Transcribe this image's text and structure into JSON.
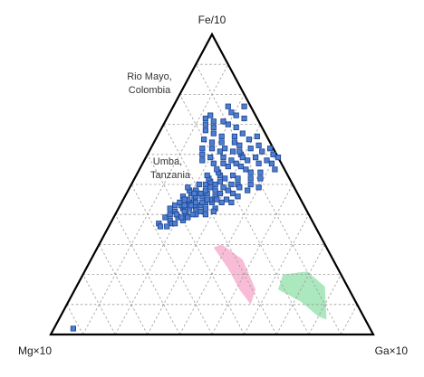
{
  "chart_data": {
    "type": "scatter",
    "subtype": "ternary",
    "grid": true,
    "grid_divisions": 10,
    "vertices": {
      "top": "Fe/10",
      "left": "Mg×10",
      "right": "Ga×10"
    },
    "regions": [
      {
        "label_lines": [
          "Rio Mayo,",
          "Colombia"
        ],
        "color": "#8fe0a8",
        "points": [
          [
            0.8,
            0.06
          ],
          [
            0.83,
            0.05
          ],
          [
            0.77,
            0.16
          ],
          [
            0.69,
            0.21
          ],
          [
            0.62,
            0.2
          ],
          [
            0.63,
            0.15
          ],
          [
            0.72,
            0.11
          ]
        ]
      },
      {
        "label_lines": [
          "Umba,",
          "Tanzania"
        ],
        "color": "#f7a6c8",
        "points": [
          [
            0.57,
            0.1
          ],
          [
            0.56,
            0.15
          ],
          [
            0.47,
            0.25
          ],
          [
            0.38,
            0.3
          ],
          [
            0.36,
            0.29
          ],
          [
            0.44,
            0.22
          ],
          [
            0.51,
            0.15
          ]
        ]
      }
    ],
    "marker": {
      "shape": "square",
      "fill": "#4a7fd4",
      "stroke": "#1c3f8a"
    },
    "points": [
      [
        0.06,
        0.02
      ],
      [
        0.15,
        0.37
      ],
      [
        0.16,
        0.36
      ],
      [
        0.18,
        0.38
      ],
      [
        0.19,
        0.37
      ],
      [
        0.18,
        0.36
      ],
      [
        0.2,
        0.39
      ],
      [
        0.22,
        0.38
      ],
      [
        0.2,
        0.37
      ],
      [
        0.16,
        0.39
      ],
      [
        0.17,
        0.4
      ],
      [
        0.18,
        0.41
      ],
      [
        0.2,
        0.42
      ],
      [
        0.22,
        0.4
      ],
      [
        0.21,
        0.41
      ],
      [
        0.24,
        0.42
      ],
      [
        0.23,
        0.39
      ],
      [
        0.19,
        0.43
      ],
      [
        0.21,
        0.44
      ],
      [
        0.19,
        0.4
      ],
      [
        0.23,
        0.43
      ],
      [
        0.25,
        0.4
      ],
      [
        0.21,
        0.39
      ],
      [
        0.18,
        0.44
      ],
      [
        0.25,
        0.43
      ],
      [
        0.27,
        0.42
      ],
      [
        0.22,
        0.45
      ],
      [
        0.26,
        0.44
      ],
      [
        0.2,
        0.45
      ],
      [
        0.17,
        0.43
      ],
      [
        0.22,
        0.46
      ],
      [
        0.24,
        0.46
      ],
      [
        0.16,
        0.42
      ],
      [
        0.22,
        0.42
      ],
      [
        0.24,
        0.4
      ],
      [
        0.25,
        0.44
      ],
      [
        0.28,
        0.44
      ],
      [
        0.27,
        0.45
      ],
      [
        0.23,
        0.47
      ],
      [
        0.25,
        0.47
      ],
      [
        0.21,
        0.48
      ],
      [
        0.2,
        0.47
      ],
      [
        0.18,
        0.46
      ],
      [
        0.26,
        0.41
      ],
      [
        0.28,
        0.4
      ],
      [
        0.3,
        0.42
      ],
      [
        0.28,
        0.46
      ],
      [
        0.24,
        0.48
      ],
      [
        0.29,
        0.45
      ],
      [
        0.31,
        0.44
      ],
      [
        0.25,
        0.49
      ],
      [
        0.23,
        0.5
      ],
      [
        0.27,
        0.48
      ],
      [
        0.26,
        0.5
      ],
      [
        0.19,
        0.45
      ],
      [
        0.21,
        0.47
      ],
      [
        0.23,
        0.44
      ],
      [
        0.26,
        0.45
      ],
      [
        0.22,
        0.43
      ],
      [
        0.2,
        0.43
      ],
      [
        0.29,
        0.47
      ],
      [
        0.3,
        0.41
      ],
      [
        0.32,
        0.45
      ],
      [
        0.34,
        0.44
      ],
      [
        0.33,
        0.47
      ],
      [
        0.31,
        0.48
      ],
      [
        0.35,
        0.46
      ],
      [
        0.29,
        0.49
      ],
      [
        0.37,
        0.48
      ],
      [
        0.27,
        0.51
      ],
      [
        0.28,
        0.52
      ],
      [
        0.26,
        0.53
      ],
      [
        0.24,
        0.51
      ],
      [
        0.31,
        0.5
      ],
      [
        0.33,
        0.5
      ],
      [
        0.32,
        0.52
      ],
      [
        0.3,
        0.53
      ],
      [
        0.34,
        0.49
      ],
      [
        0.23,
        0.52
      ],
      [
        0.25,
        0.54
      ],
      [
        0.21,
        0.5
      ],
      [
        0.19,
        0.48
      ],
      [
        0.18,
        0.49
      ],
      [
        0.24,
        0.55
      ],
      [
        0.22,
        0.53
      ],
      [
        0.27,
        0.56
      ],
      [
        0.29,
        0.57
      ],
      [
        0.31,
        0.56
      ],
      [
        0.33,
        0.55
      ],
      [
        0.25,
        0.57
      ],
      [
        0.27,
        0.58
      ],
      [
        0.22,
        0.57
      ],
      [
        0.24,
        0.59
      ],
      [
        0.29,
        0.6
      ],
      [
        0.26,
        0.61
      ],
      [
        0.23,
        0.62
      ],
      [
        0.27,
        0.63
      ],
      [
        0.25,
        0.64
      ],
      [
        0.22,
        0.61
      ],
      [
        0.2,
        0.59
      ],
      [
        0.18,
        0.58
      ],
      [
        0.21,
        0.64
      ],
      [
        0.24,
        0.66
      ],
      [
        0.19,
        0.62
      ],
      [
        0.17,
        0.6
      ],
      [
        0.2,
        0.66
      ],
      [
        0.18,
        0.64
      ],
      [
        0.16,
        0.62
      ],
      [
        0.15,
        0.65
      ],
      [
        0.17,
        0.67
      ],
      [
        0.14,
        0.68
      ],
      [
        0.16,
        0.69
      ],
      [
        0.13,
        0.7
      ],
      [
        0.15,
        0.71
      ],
      [
        0.12,
        0.72
      ],
      [
        0.13,
        0.73
      ],
      [
        0.34,
        0.59
      ],
      [
        0.36,
        0.57
      ],
      [
        0.38,
        0.58
      ],
      [
        0.35,
        0.61
      ],
      [
        0.39,
        0.6
      ],
      [
        0.37,
        0.62
      ],
      [
        0.4,
        0.57
      ],
      [
        0.42,
        0.55
      ],
      [
        0.41,
        0.59
      ],
      [
        0.36,
        0.52
      ],
      [
        0.38,
        0.54
      ],
      [
        0.35,
        0.54
      ],
      [
        0.37,
        0.5
      ],
      [
        0.39,
        0.52
      ],
      [
        0.4,
        0.49
      ],
      [
        0.32,
        0.58
      ],
      [
        0.3,
        0.59
      ],
      [
        0.28,
        0.61
      ],
      [
        0.31,
        0.62
      ],
      [
        0.33,
        0.63
      ],
      [
        0.29,
        0.65
      ],
      [
        0.31,
        0.66
      ],
      [
        0.26,
        0.67
      ],
      [
        0.23,
        0.69
      ],
      [
        0.2,
        0.7
      ],
      [
        0.18,
        0.71
      ],
      [
        0.24,
        0.72
      ],
      [
        0.21,
        0.73
      ],
      [
        0.19,
        0.74
      ],
      [
        0.17,
        0.76
      ],
      [
        0.22,
        0.76
      ]
    ]
  }
}
